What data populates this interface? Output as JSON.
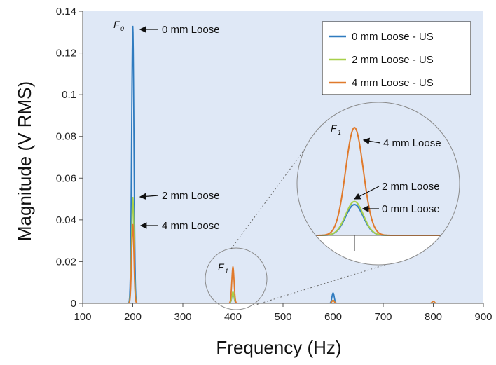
{
  "chart_data": {
    "type": "line",
    "xlabel": "Frequency (Hz)",
    "ylabel": "Magnitude (V RMS)",
    "xlim": [
      100,
      900
    ],
    "ylim": [
      0,
      0.14
    ],
    "x_ticks": [
      "100",
      "200",
      "300",
      "400",
      "500",
      "600",
      "700",
      "800",
      "900"
    ],
    "y_ticks": [
      "0",
      "0.02",
      "0.04",
      "0.06",
      "0.08",
      "0.1",
      "0.12",
      "0.14"
    ],
    "grid": false,
    "legend_position": "top-right",
    "series": [
      {
        "name": "0 mm Loose - US",
        "color": "#2f7bbf",
        "peaks": [
          {
            "x": 200,
            "y": 0.133
          },
          {
            "x": 400,
            "y": 0.005
          },
          {
            "x": 600,
            "y": 0.005
          },
          {
            "x": 800,
            "y": 0.001
          }
        ]
      },
      {
        "name": "2 mm Loose - US",
        "color": "#a8d04a",
        "peaks": [
          {
            "x": 200,
            "y": 0.051
          },
          {
            "x": 400,
            "y": 0.0055
          },
          {
            "x": 600,
            "y": 0.0015
          },
          {
            "x": 800,
            "y": 0.001
          }
        ]
      },
      {
        "name": "4 mm Loose - US",
        "color": "#e07a2c",
        "peaks": [
          {
            "x": 200,
            "y": 0.038
          },
          {
            "x": 400,
            "y": 0.0175
          },
          {
            "x": 600,
            "y": 0.0015
          },
          {
            "x": 800,
            "y": 0.001
          }
        ]
      }
    ],
    "annotations": {
      "f0_symbol": "F",
      "f0_sub": "0",
      "f1_symbol": "F",
      "f1_sub": "1",
      "zero_label": "0 mm Loose",
      "two_label": "2 mm Loose",
      "four_label": "4 mm Loose",
      "inset_zero_label": "0 mm Loose",
      "inset_two_label": "2 mm Loose",
      "inset_four_label": "4 mm Loose"
    }
  }
}
